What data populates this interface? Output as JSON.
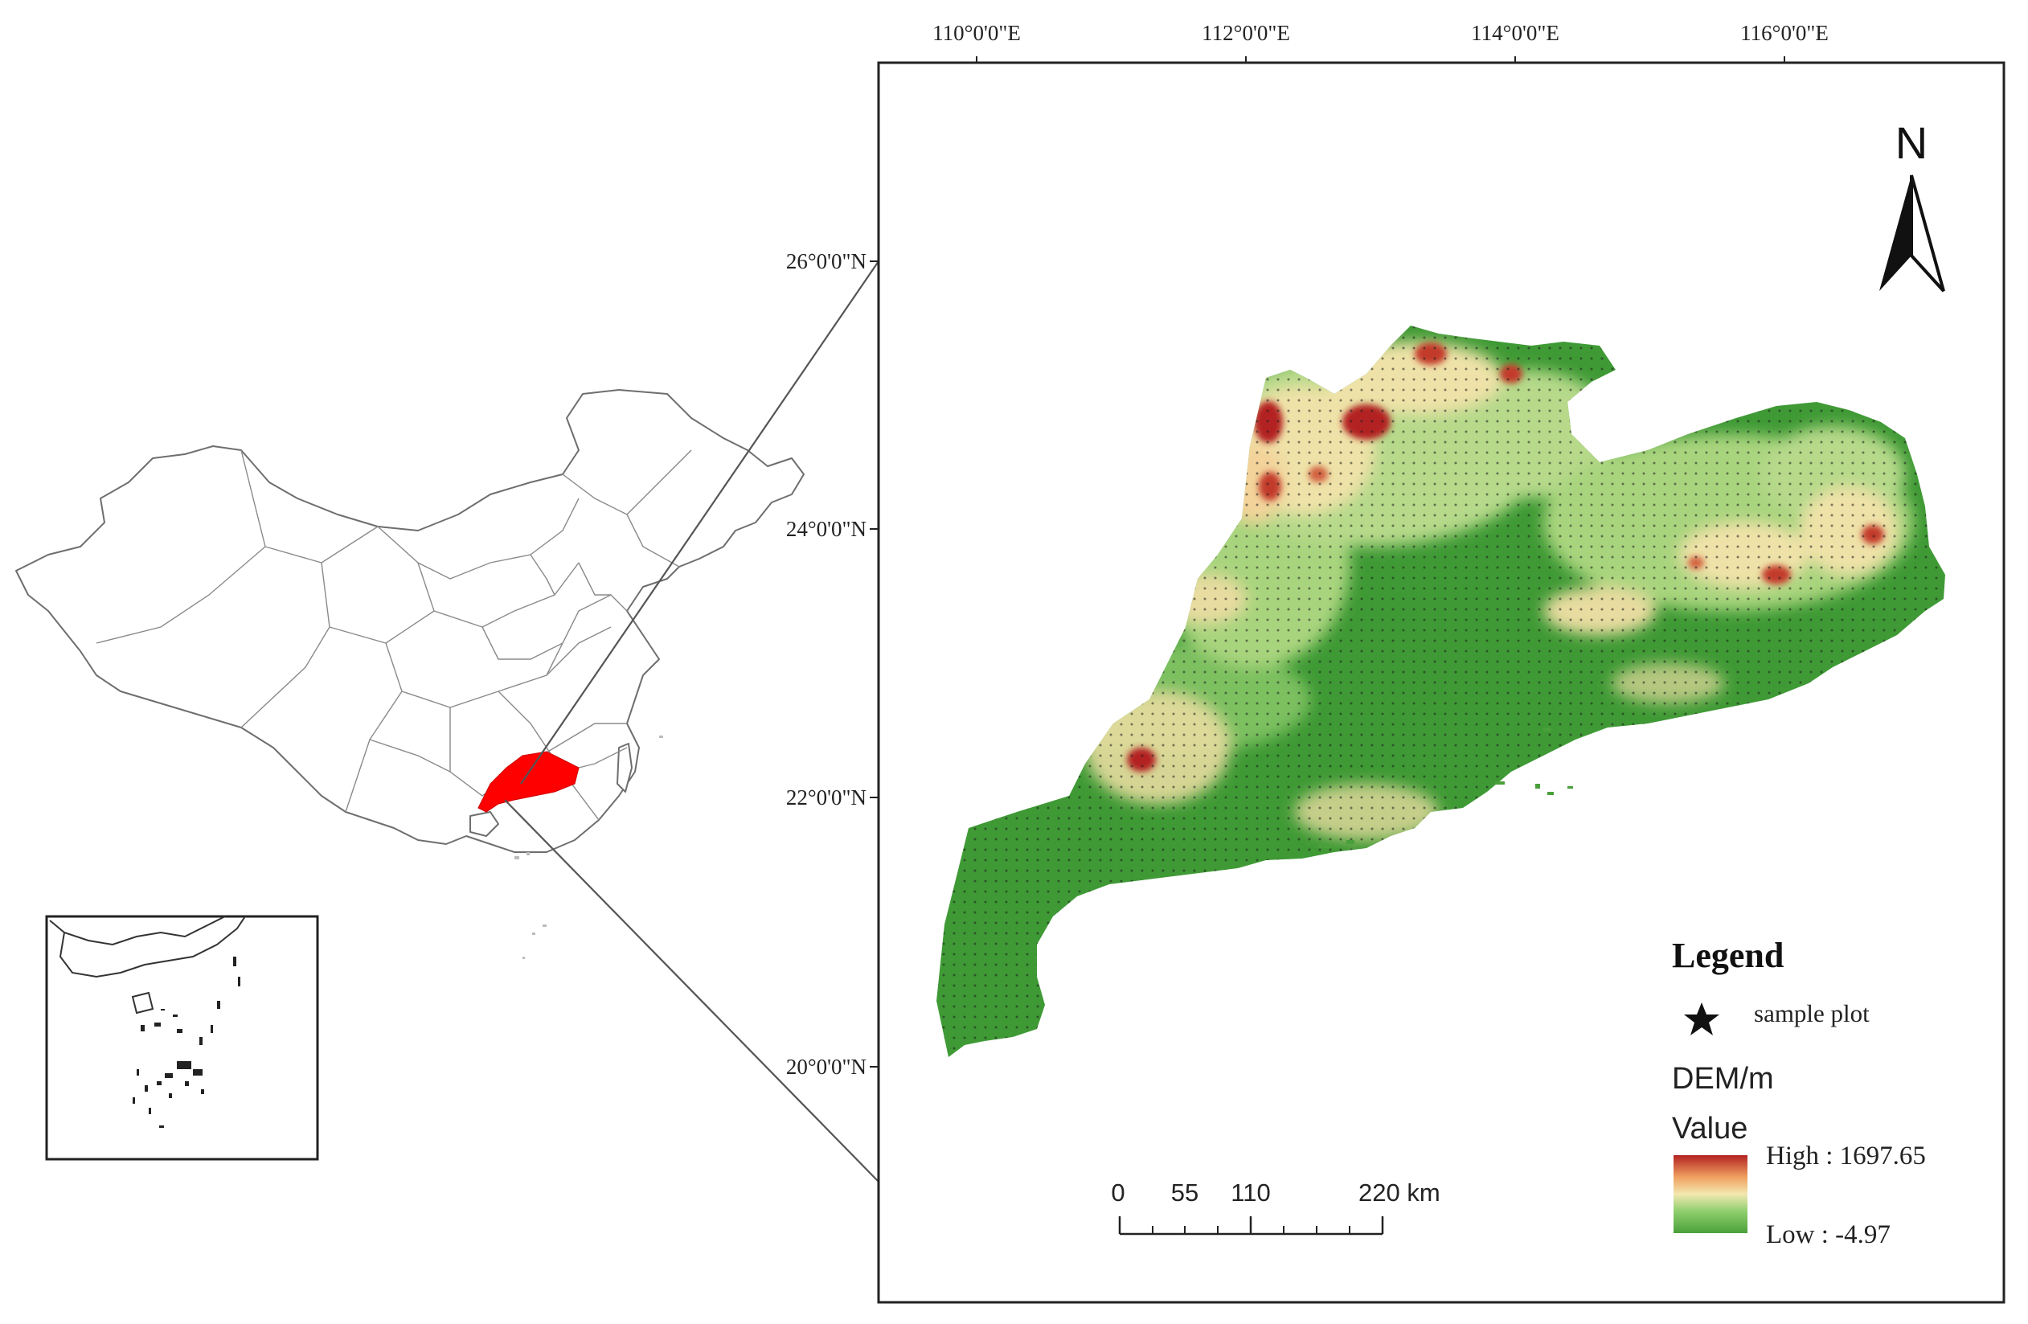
{
  "map": {
    "longitude_ticks": [
      "110°0'0\"E",
      "112°0'0\"E",
      "114°0'0\"E",
      "116°0'0\"E"
    ],
    "latitude_ticks": [
      "26°0'0\"N",
      "24°0'0\"N",
      "22°0'0\"N",
      "20°0'0\"N"
    ],
    "north_arrow": {
      "label": "N",
      "icon": "north-arrow-icon"
    },
    "legend": {
      "title": "Legend",
      "marker_icon": "star-icon",
      "marker_label": "sample plot",
      "layer_name": "DEM/m",
      "value_heading": "Value",
      "high_label": "High : 1697.65",
      "low_label": "Low : -4.97",
      "ramp_colors": [
        "#b22222",
        "#f0a060",
        "#f2e8b0",
        "#8fcf6e",
        "#4aa03a"
      ]
    },
    "scale_bar": {
      "tick_labels": [
        "0",
        "55",
        "110",
        "220 km"
      ]
    },
    "colors": {
      "highlight_region": "#ff0000",
      "dem_low": "#3f9a35",
      "dem_mid": "#f0e4a6",
      "dem_high": "#b52020"
    }
  }
}
